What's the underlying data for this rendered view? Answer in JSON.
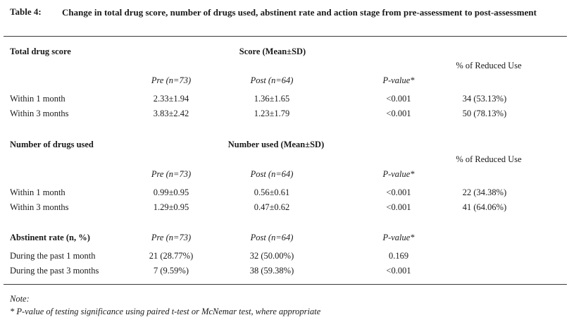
{
  "table": {
    "label": "Table 4:",
    "title": "Change in total drug score, number of drugs used, abstinent rate and action stage from pre-assessment to post-assessment"
  },
  "section1": {
    "heading": "Total drug score",
    "group_header": "Score (Mean±SD)",
    "reduced_header": "% of Reduced Use",
    "col_pre": "Pre (n=73)",
    "col_post": "Post (n=64)",
    "col_p": "P-value*",
    "rows": [
      {
        "label": "Within 1 month",
        "pre": "2.33±1.94",
        "post": "1.36±1.65",
        "p": "<0.001",
        "reduced": "34 (53.13%)"
      },
      {
        "label": "Within 3 months",
        "pre": "3.83±2.42",
        "post": "1.23±1.79",
        "p": "<0.001",
        "reduced": "50 (78.13%)"
      }
    ]
  },
  "section2": {
    "heading": "Number of drugs used",
    "group_header": "Number used (Mean±SD)",
    "reduced_header": "% of Reduced Use",
    "col_pre": "Pre (n=73)",
    "col_post": "Post (n=64)",
    "col_p": "P-value*",
    "rows": [
      {
        "label": "Within 1 month",
        "pre": "0.99±0.95",
        "post": "0.56±0.61",
        "p": "<0.001",
        "reduced": "22 (34.38%)"
      },
      {
        "label": "Within 3 months",
        "pre": "1.29±0.95",
        "post": "0.47±0.62",
        "p": "<0.001",
        "reduced": "41 (64.06%)"
      }
    ]
  },
  "section3": {
    "heading": "Abstinent rate (n, %)",
    "col_pre": "Pre (n=73)",
    "col_post": "Post (n=64)",
    "col_p": "P-value*",
    "rows": [
      {
        "label": "During the past 1 month",
        "pre": "21 (28.77%)",
        "post": "32 (50.00%)",
        "p": "0.169"
      },
      {
        "label": "During the past 3 months",
        "pre": "7 (9.59%)",
        "post": "38 (59.38%)",
        "p": "<0.001"
      }
    ]
  },
  "note": {
    "label": "Note:",
    "text": "* P-value of testing significance using paired t-test or McNemar test, where appropriate"
  }
}
